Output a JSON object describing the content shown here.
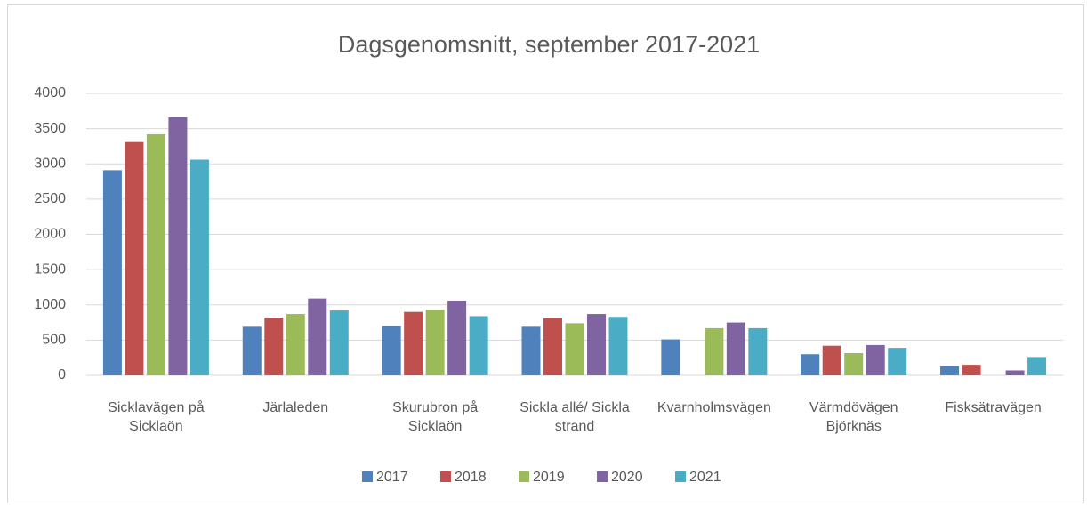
{
  "chart_data": {
    "type": "bar",
    "title": "Dagsgenomsnitt, september 2017-2021",
    "categories": [
      "Sicklavägen på Sicklaön",
      "Järlaleden",
      "Skurubron på Sicklaön",
      "Sickla allé/ Sickla strand",
      "Kvarnholmsvägen",
      "Värmdövägen Björknäs",
      "Fisksätravägen"
    ],
    "series": [
      {
        "name": "2017",
        "color": "#4f81bd",
        "values": [
          2910,
          690,
          700,
          690,
          510,
          300,
          130
        ]
      },
      {
        "name": "2018",
        "color": "#c0504d",
        "values": [
          3310,
          820,
          900,
          810,
          null,
          420,
          150
        ]
      },
      {
        "name": "2019",
        "color": "#9bbb59",
        "values": [
          3420,
          870,
          930,
          740,
          670,
          315,
          null
        ]
      },
      {
        "name": "2020",
        "color": "#8064a2",
        "values": [
          3660,
          1090,
          1060,
          870,
          750,
          430,
          70
        ]
      },
      {
        "name": "2021",
        "color": "#4bacc6",
        "values": [
          3060,
          920,
          840,
          830,
          670,
          390,
          260
        ]
      }
    ],
    "ylim": [
      0,
      4000
    ],
    "yticks": [
      0,
      500,
      1000,
      1500,
      2000,
      2500,
      3000,
      3500,
      4000
    ],
    "grid": true,
    "legend": "bottom"
  }
}
